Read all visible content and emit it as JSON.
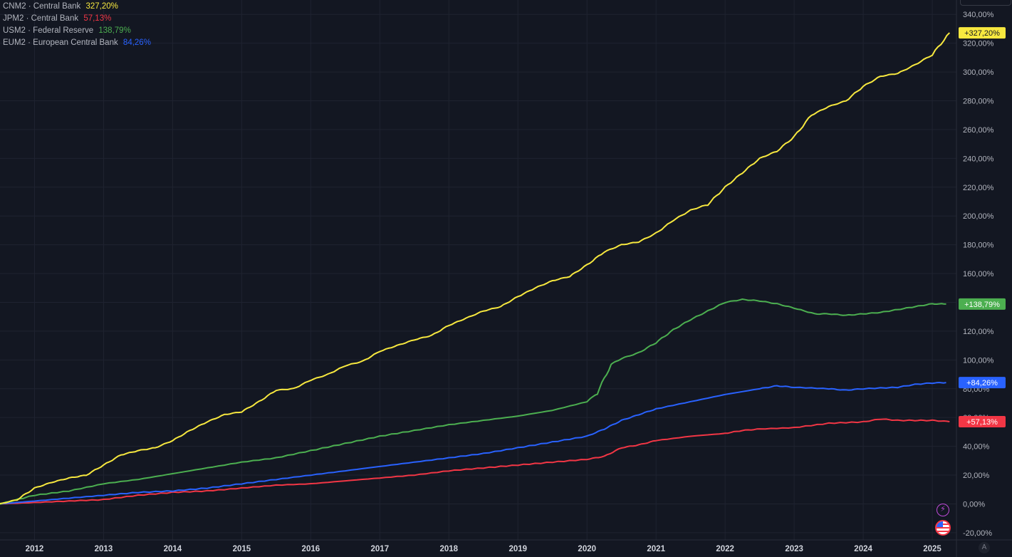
{
  "legend": [
    {
      "name": "CNM2 · Central Bank",
      "value": "327,20%",
      "color": "#f7e83f"
    },
    {
      "name": "JPM2 · Central Bank",
      "value": "57,13%",
      "color": "#f23645"
    },
    {
      "name": "USM2 · Federal Reserve",
      "value": "138,79%",
      "color": "#4caf50"
    },
    {
      "name": "EUM2 · European Central Bank",
      "value": "84,26%",
      "color": "#2962ff"
    }
  ],
  "badges": [
    {
      "label": "+327,20%",
      "value": 327.2,
      "color": "#f7e83f",
      "text_color": "#131722"
    },
    {
      "label": "+138,79%",
      "value": 138.79,
      "color": "#4caf50",
      "text_color": "#ffffff"
    },
    {
      "label": "+84,26%",
      "value": 84.26,
      "color": "#2962ff",
      "text_color": "#ffffff"
    },
    {
      "label": "+57,13%",
      "value": 57.13,
      "color": "#f23645",
      "text_color": "#ffffff"
    }
  ],
  "icons": {
    "flash_glyph": "⚡",
    "auto_scale": "A"
  },
  "chart_data": {
    "type": "line",
    "x_range": [
      2011.5,
      2025.35
    ],
    "ylim": [
      -25,
      350
    ],
    "y_ticks": [
      -20,
      0,
      20,
      40,
      60,
      80,
      100,
      120,
      140,
      160,
      180,
      200,
      220,
      240,
      260,
      280,
      300,
      320,
      340
    ],
    "y_tick_labels": [
      "-20,00%",
      "0,00%",
      "20,00%",
      "40,00%",
      "60,00%",
      "80,00%",
      "100,00%",
      "120,00%",
      "140,00%",
      "160,00%",
      "180,00%",
      "200,00%",
      "220,00%",
      "240,00%",
      "260,00%",
      "280,00%",
      "300,00%",
      "320,00%",
      "340,00%"
    ],
    "x_ticks": [
      2012,
      2013,
      2014,
      2015,
      2016,
      2017,
      2018,
      2019,
      2020,
      2021,
      2022,
      2023,
      2024,
      2025
    ],
    "x_tick_labels": [
      "2012",
      "2013",
      "2014",
      "2015",
      "2016",
      "2017",
      "2018",
      "2019",
      "2020",
      "2021",
      "2022",
      "2023",
      "2024",
      "2025"
    ],
    "grid": true,
    "series": [
      {
        "name": "CNM2 · Central Bank",
        "color": "#f7e83f",
        "points": [
          [
            2011.5,
            0
          ],
          [
            2011.75,
            3
          ],
          [
            2012.0,
            11
          ],
          [
            2012.25,
            15
          ],
          [
            2012.5,
            18
          ],
          [
            2012.75,
            20
          ],
          [
            2013.0,
            27
          ],
          [
            2013.25,
            34
          ],
          [
            2013.5,
            37
          ],
          [
            2013.75,
            39
          ],
          [
            2014.0,
            44
          ],
          [
            2014.25,
            51
          ],
          [
            2014.5,
            57
          ],
          [
            2014.75,
            62
          ],
          [
            2015.0,
            64
          ],
          [
            2015.25,
            71
          ],
          [
            2015.5,
            79
          ],
          [
            2015.75,
            80
          ],
          [
            2016.0,
            86
          ],
          [
            2016.25,
            90
          ],
          [
            2016.5,
            96
          ],
          [
            2016.75,
            99
          ],
          [
            2017.0,
            106
          ],
          [
            2017.25,
            110
          ],
          [
            2017.5,
            114
          ],
          [
            2017.75,
            117
          ],
          [
            2018.0,
            124
          ],
          [
            2018.25,
            129
          ],
          [
            2018.5,
            134
          ],
          [
            2018.75,
            137
          ],
          [
            2019.0,
            144
          ],
          [
            2019.25,
            150
          ],
          [
            2019.5,
            155
          ],
          [
            2019.75,
            158
          ],
          [
            2020.0,
            166
          ],
          [
            2020.25,
            175
          ],
          [
            2020.5,
            180
          ],
          [
            2020.75,
            182
          ],
          [
            2021.0,
            188
          ],
          [
            2021.25,
            197
          ],
          [
            2021.5,
            204
          ],
          [
            2021.75,
            208
          ],
          [
            2022.0,
            220
          ],
          [
            2022.25,
            230
          ],
          [
            2022.5,
            240
          ],
          [
            2022.75,
            245
          ],
          [
            2023.0,
            255
          ],
          [
            2023.25,
            270
          ],
          [
            2023.5,
            276
          ],
          [
            2023.75,
            280
          ],
          [
            2024.0,
            290
          ],
          [
            2024.25,
            297
          ],
          [
            2024.5,
            299
          ],
          [
            2024.75,
            305
          ],
          [
            2025.0,
            312
          ],
          [
            2025.25,
            327.2
          ]
        ]
      },
      {
        "name": "JPM2 · Central Bank",
        "color": "#f23645",
        "points": [
          [
            2011.5,
            0
          ],
          [
            2012.0,
            1
          ],
          [
            2012.5,
            2
          ],
          [
            2013.0,
            3
          ],
          [
            2013.5,
            6
          ],
          [
            2014.0,
            8
          ],
          [
            2014.5,
            9
          ],
          [
            2015.0,
            11
          ],
          [
            2015.5,
            13
          ],
          [
            2016.0,
            14
          ],
          [
            2016.5,
            16
          ],
          [
            2017.0,
            18
          ],
          [
            2017.5,
            20
          ],
          [
            2018.0,
            23
          ],
          [
            2018.5,
            25
          ],
          [
            2019.0,
            27
          ],
          [
            2019.5,
            29
          ],
          [
            2020.0,
            31
          ],
          [
            2020.25,
            33
          ],
          [
            2020.5,
            39
          ],
          [
            2020.75,
            41
          ],
          [
            2021.0,
            44
          ],
          [
            2021.5,
            47
          ],
          [
            2022.0,
            49
          ],
          [
            2022.25,
            51
          ],
          [
            2022.5,
            52
          ],
          [
            2023.0,
            53
          ],
          [
            2023.5,
            56
          ],
          [
            2024.0,
            57
          ],
          [
            2024.25,
            59
          ],
          [
            2024.5,
            58
          ],
          [
            2024.75,
            58
          ],
          [
            2025.0,
            58
          ],
          [
            2025.25,
            57.13
          ]
        ]
      },
      {
        "name": "USM2 · Federal Reserve",
        "color": "#4caf50",
        "points": [
          [
            2011.5,
            0
          ],
          [
            2012.0,
            6
          ],
          [
            2012.5,
            9
          ],
          [
            2013.0,
            14
          ],
          [
            2013.5,
            17
          ],
          [
            2014.0,
            21
          ],
          [
            2014.5,
            25
          ],
          [
            2015.0,
            29
          ],
          [
            2015.5,
            32
          ],
          [
            2016.0,
            37
          ],
          [
            2016.5,
            42
          ],
          [
            2017.0,
            47
          ],
          [
            2017.5,
            51
          ],
          [
            2018.0,
            55
          ],
          [
            2018.5,
            58
          ],
          [
            2019.0,
            61
          ],
          [
            2019.5,
            65
          ],
          [
            2020.0,
            71
          ],
          [
            2020.15,
            77
          ],
          [
            2020.35,
            97
          ],
          [
            2020.5,
            101
          ],
          [
            2020.75,
            105
          ],
          [
            2021.0,
            112
          ],
          [
            2021.25,
            121
          ],
          [
            2021.5,
            128
          ],
          [
            2021.75,
            134
          ],
          [
            2022.0,
            140
          ],
          [
            2022.25,
            142
          ],
          [
            2022.5,
            141
          ],
          [
            2022.75,
            139
          ],
          [
            2023.0,
            136
          ],
          [
            2023.3,
            132
          ],
          [
            2023.5,
            132
          ],
          [
            2023.75,
            131
          ],
          [
            2024.0,
            132
          ],
          [
            2024.25,
            133
          ],
          [
            2024.5,
            135
          ],
          [
            2024.75,
            137
          ],
          [
            2025.0,
            139
          ],
          [
            2025.2,
            138.79
          ]
        ]
      },
      {
        "name": "EUM2 · European Central Bank",
        "color": "#2962ff",
        "points": [
          [
            2011.5,
            0
          ],
          [
            2012.0,
            2
          ],
          [
            2012.5,
            4
          ],
          [
            2013.0,
            6
          ],
          [
            2013.5,
            8
          ],
          [
            2014.0,
            9
          ],
          [
            2014.5,
            11
          ],
          [
            2015.0,
            14
          ],
          [
            2015.5,
            17
          ],
          [
            2016.0,
            20
          ],
          [
            2016.5,
            23
          ],
          [
            2017.0,
            26
          ],
          [
            2017.5,
            29
          ],
          [
            2018.0,
            32
          ],
          [
            2018.5,
            35
          ],
          [
            2019.0,
            39
          ],
          [
            2019.5,
            43
          ],
          [
            2020.0,
            47
          ],
          [
            2020.25,
            52
          ],
          [
            2020.5,
            58
          ],
          [
            2020.75,
            62
          ],
          [
            2021.0,
            66
          ],
          [
            2021.5,
            71
          ],
          [
            2022.0,
            76
          ],
          [
            2022.5,
            80
          ],
          [
            2022.75,
            82
          ],
          [
            2023.0,
            81
          ],
          [
            2023.5,
            80
          ],
          [
            2023.75,
            79
          ],
          [
            2024.0,
            80
          ],
          [
            2024.5,
            81
          ],
          [
            2024.75,
            83
          ],
          [
            2025.0,
            84
          ],
          [
            2025.2,
            84.26
          ]
        ]
      }
    ]
  }
}
